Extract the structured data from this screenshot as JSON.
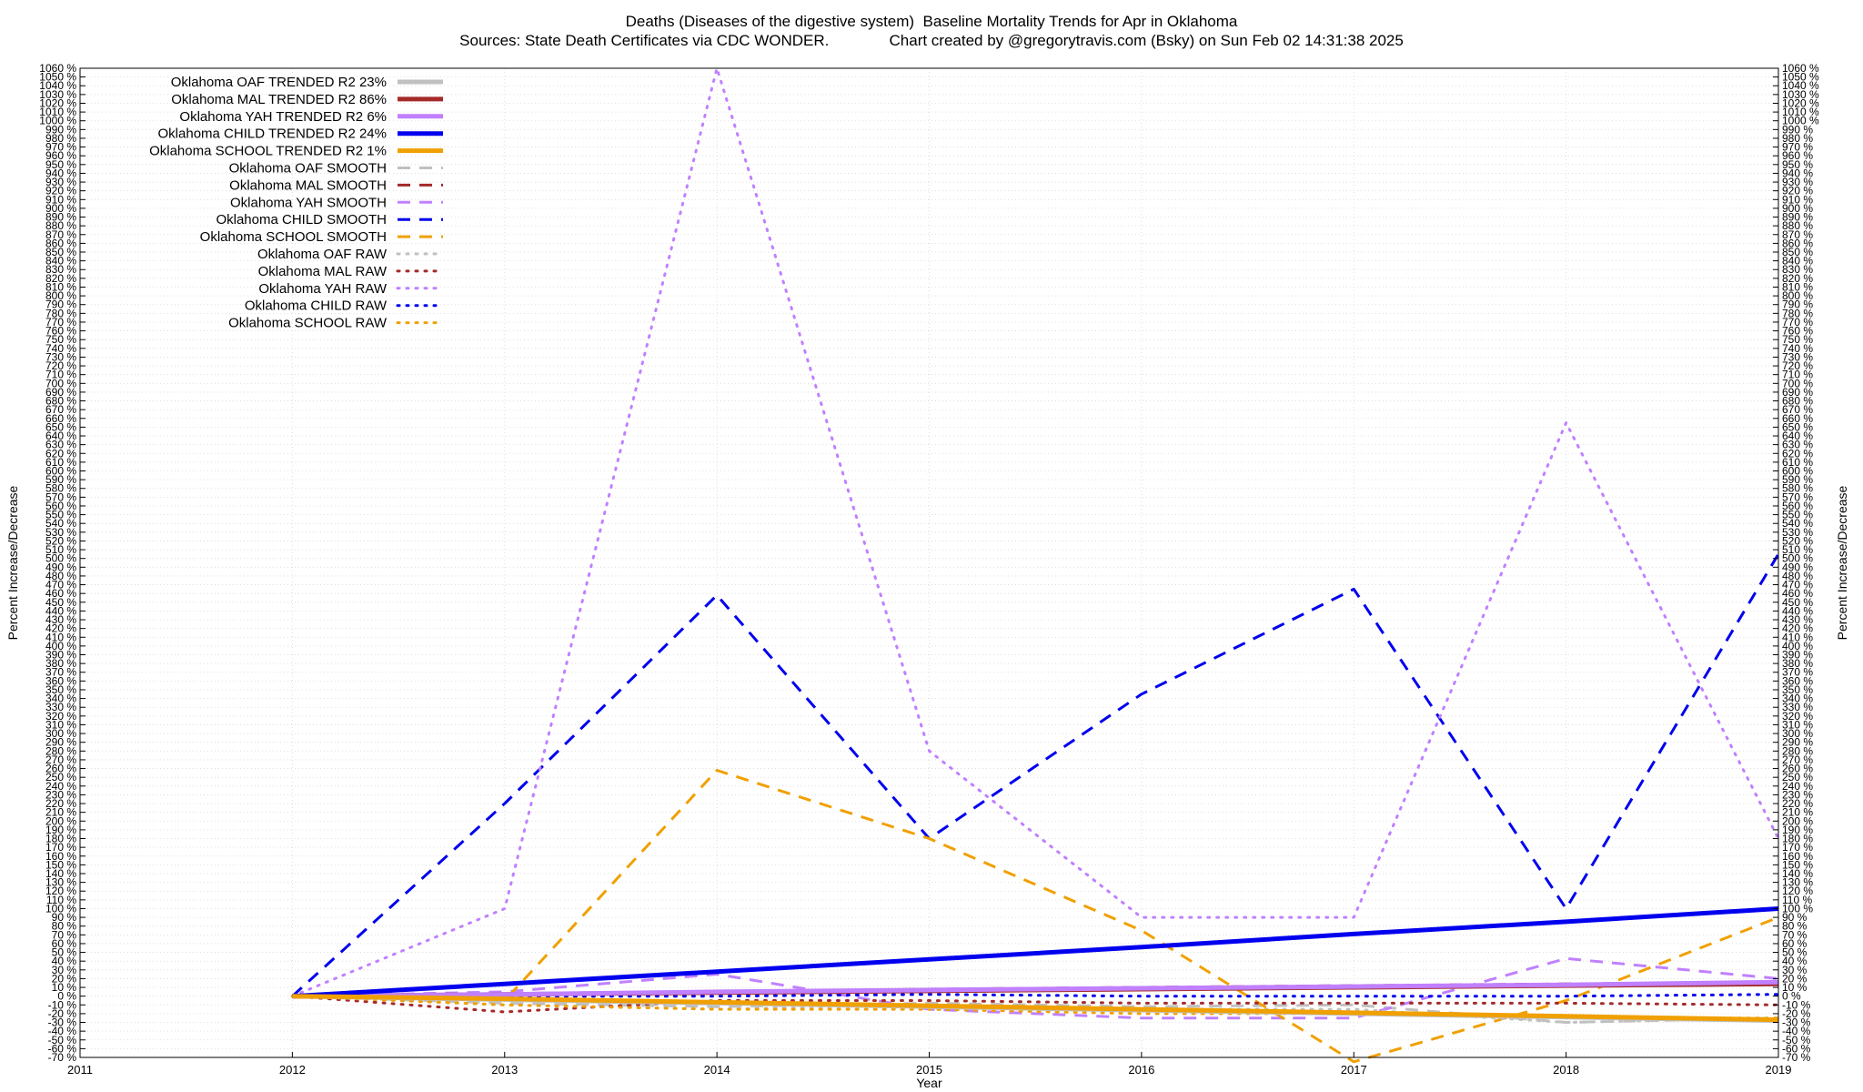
{
  "chart_data": {
    "type": "line",
    "title": "Deaths (Diseases of the digestive system)  Baseline Mortality Trends for Apr in Oklahoma",
    "subtitle": "Sources: State Death Certificates via CDC WONDER.              Chart created by @gregorytravis.com (Bsky) on Sun Feb 02 14:31:38 2025",
    "xlabel": "Year",
    "ylabel": "Percent Increase/Decrease",
    "y2label": "Percent Increase/Decrease",
    "xlim": [
      2011,
      2019
    ],
    "ylim": [
      -70,
      1060
    ],
    "x_ticks": [
      2011,
      2012,
      2013,
      2014,
      2015,
      2016,
      2017,
      2018,
      2019
    ],
    "x_tick_labels": [
      "2011",
      "2012",
      "2013",
      "2014",
      "2015",
      "2016",
      "2017",
      "2018",
      "2019"
    ],
    "y_tick_step": 10,
    "y_tick_suffix": " %",
    "grid": true,
    "legend_position": "top-left",
    "x": [
      2012,
      2013,
      2014,
      2015,
      2016,
      2017,
      2018,
      2019
    ],
    "series": [
      {
        "name": "Oklahoma OAF TRENDED R2  23%",
        "style": "solid",
        "color": "#c0c0c0",
        "width": 5,
        "values": [
          0,
          -4,
          -8,
          -12,
          -16,
          -20,
          -24,
          -28
        ]
      },
      {
        "name": "Oklahoma MAL TRENDED R2  86%",
        "style": "solid",
        "color": "#a52a2a",
        "width": 5,
        "values": [
          0,
          2,
          4,
          6,
          8,
          10,
          12,
          14
        ]
      },
      {
        "name": "Oklahoma YAH TRENDED R2  6%",
        "style": "solid",
        "color": "#c080ff",
        "width": 5,
        "values": [
          0,
          2,
          5,
          7,
          9,
          11,
          13,
          16
        ]
      },
      {
        "name": "Oklahoma CHILD TRENDED R2  24%",
        "style": "solid",
        "color": "#0000ee",
        "width": 5,
        "values": [
          0,
          14,
          28,
          42,
          56,
          71,
          85,
          100
        ]
      },
      {
        "name": "Oklahoma SCHOOL TRENDED R2  1%",
        "style": "solid",
        "color": "#f0a000",
        "width": 5,
        "values": [
          0,
          -3,
          -7,
          -11,
          -15,
          -19,
          -23,
          -27
        ]
      },
      {
        "name": "Oklahoma OAF SMOOTH",
        "style": "dashed",
        "color": "#c0c0c0",
        "width": 3,
        "values": [
          0,
          -8,
          -12,
          -8,
          -12,
          -10,
          -30,
          -25
        ]
      },
      {
        "name": "Oklahoma MAL SMOOTH",
        "style": "dashed",
        "color": "#a52a2a",
        "width": 3,
        "values": [
          0,
          3,
          5,
          8,
          10,
          12,
          14,
          16
        ]
      },
      {
        "name": "Oklahoma YAH SMOOTH",
        "style": "dashed",
        "color": "#c080ff",
        "width": 3,
        "values": [
          0,
          5,
          25,
          -15,
          -25,
          -25,
          43,
          20
        ]
      },
      {
        "name": "Oklahoma CHILD SMOOTH",
        "style": "dashed",
        "color": "#0000ee",
        "width": 3,
        "values": [
          0,
          220,
          458,
          180,
          345,
          465,
          100,
          505
        ]
      },
      {
        "name": "Oklahoma SCHOOL SMOOTH",
        "style": "dashed",
        "color": "#f0a000",
        "width": 3,
        "values": [
          0,
          -5,
          258,
          180,
          75,
          -75,
          -5,
          90
        ]
      },
      {
        "name": "Oklahoma OAF RAW",
        "style": "dotted",
        "color": "#c0c0c0",
        "width": 3,
        "values": [
          0,
          -10,
          -15,
          -10,
          -15,
          -15,
          -30,
          -25
        ]
      },
      {
        "name": "Oklahoma MAL RAW",
        "style": "dotted",
        "color": "#a52a2a",
        "width": 3,
        "values": [
          0,
          -18,
          -5,
          -5,
          -8,
          -8,
          -8,
          -10
        ]
      },
      {
        "name": "Oklahoma YAH RAW",
        "style": "dotted",
        "color": "#c080ff",
        "width": 3,
        "values": [
          0,
          100,
          1060,
          280,
          90,
          90,
          655,
          180
        ]
      },
      {
        "name": "Oklahoma CHILD RAW",
        "style": "dotted",
        "color": "#0000ee",
        "width": 3,
        "values": [
          0,
          0,
          0,
          2,
          0,
          0,
          0,
          2
        ]
      },
      {
        "name": "Oklahoma SCHOOL RAW",
        "style": "dotted",
        "color": "#f0a000",
        "width": 3,
        "values": [
          0,
          -10,
          -15,
          -15,
          -20,
          -20,
          -25,
          -25
        ]
      }
    ]
  }
}
